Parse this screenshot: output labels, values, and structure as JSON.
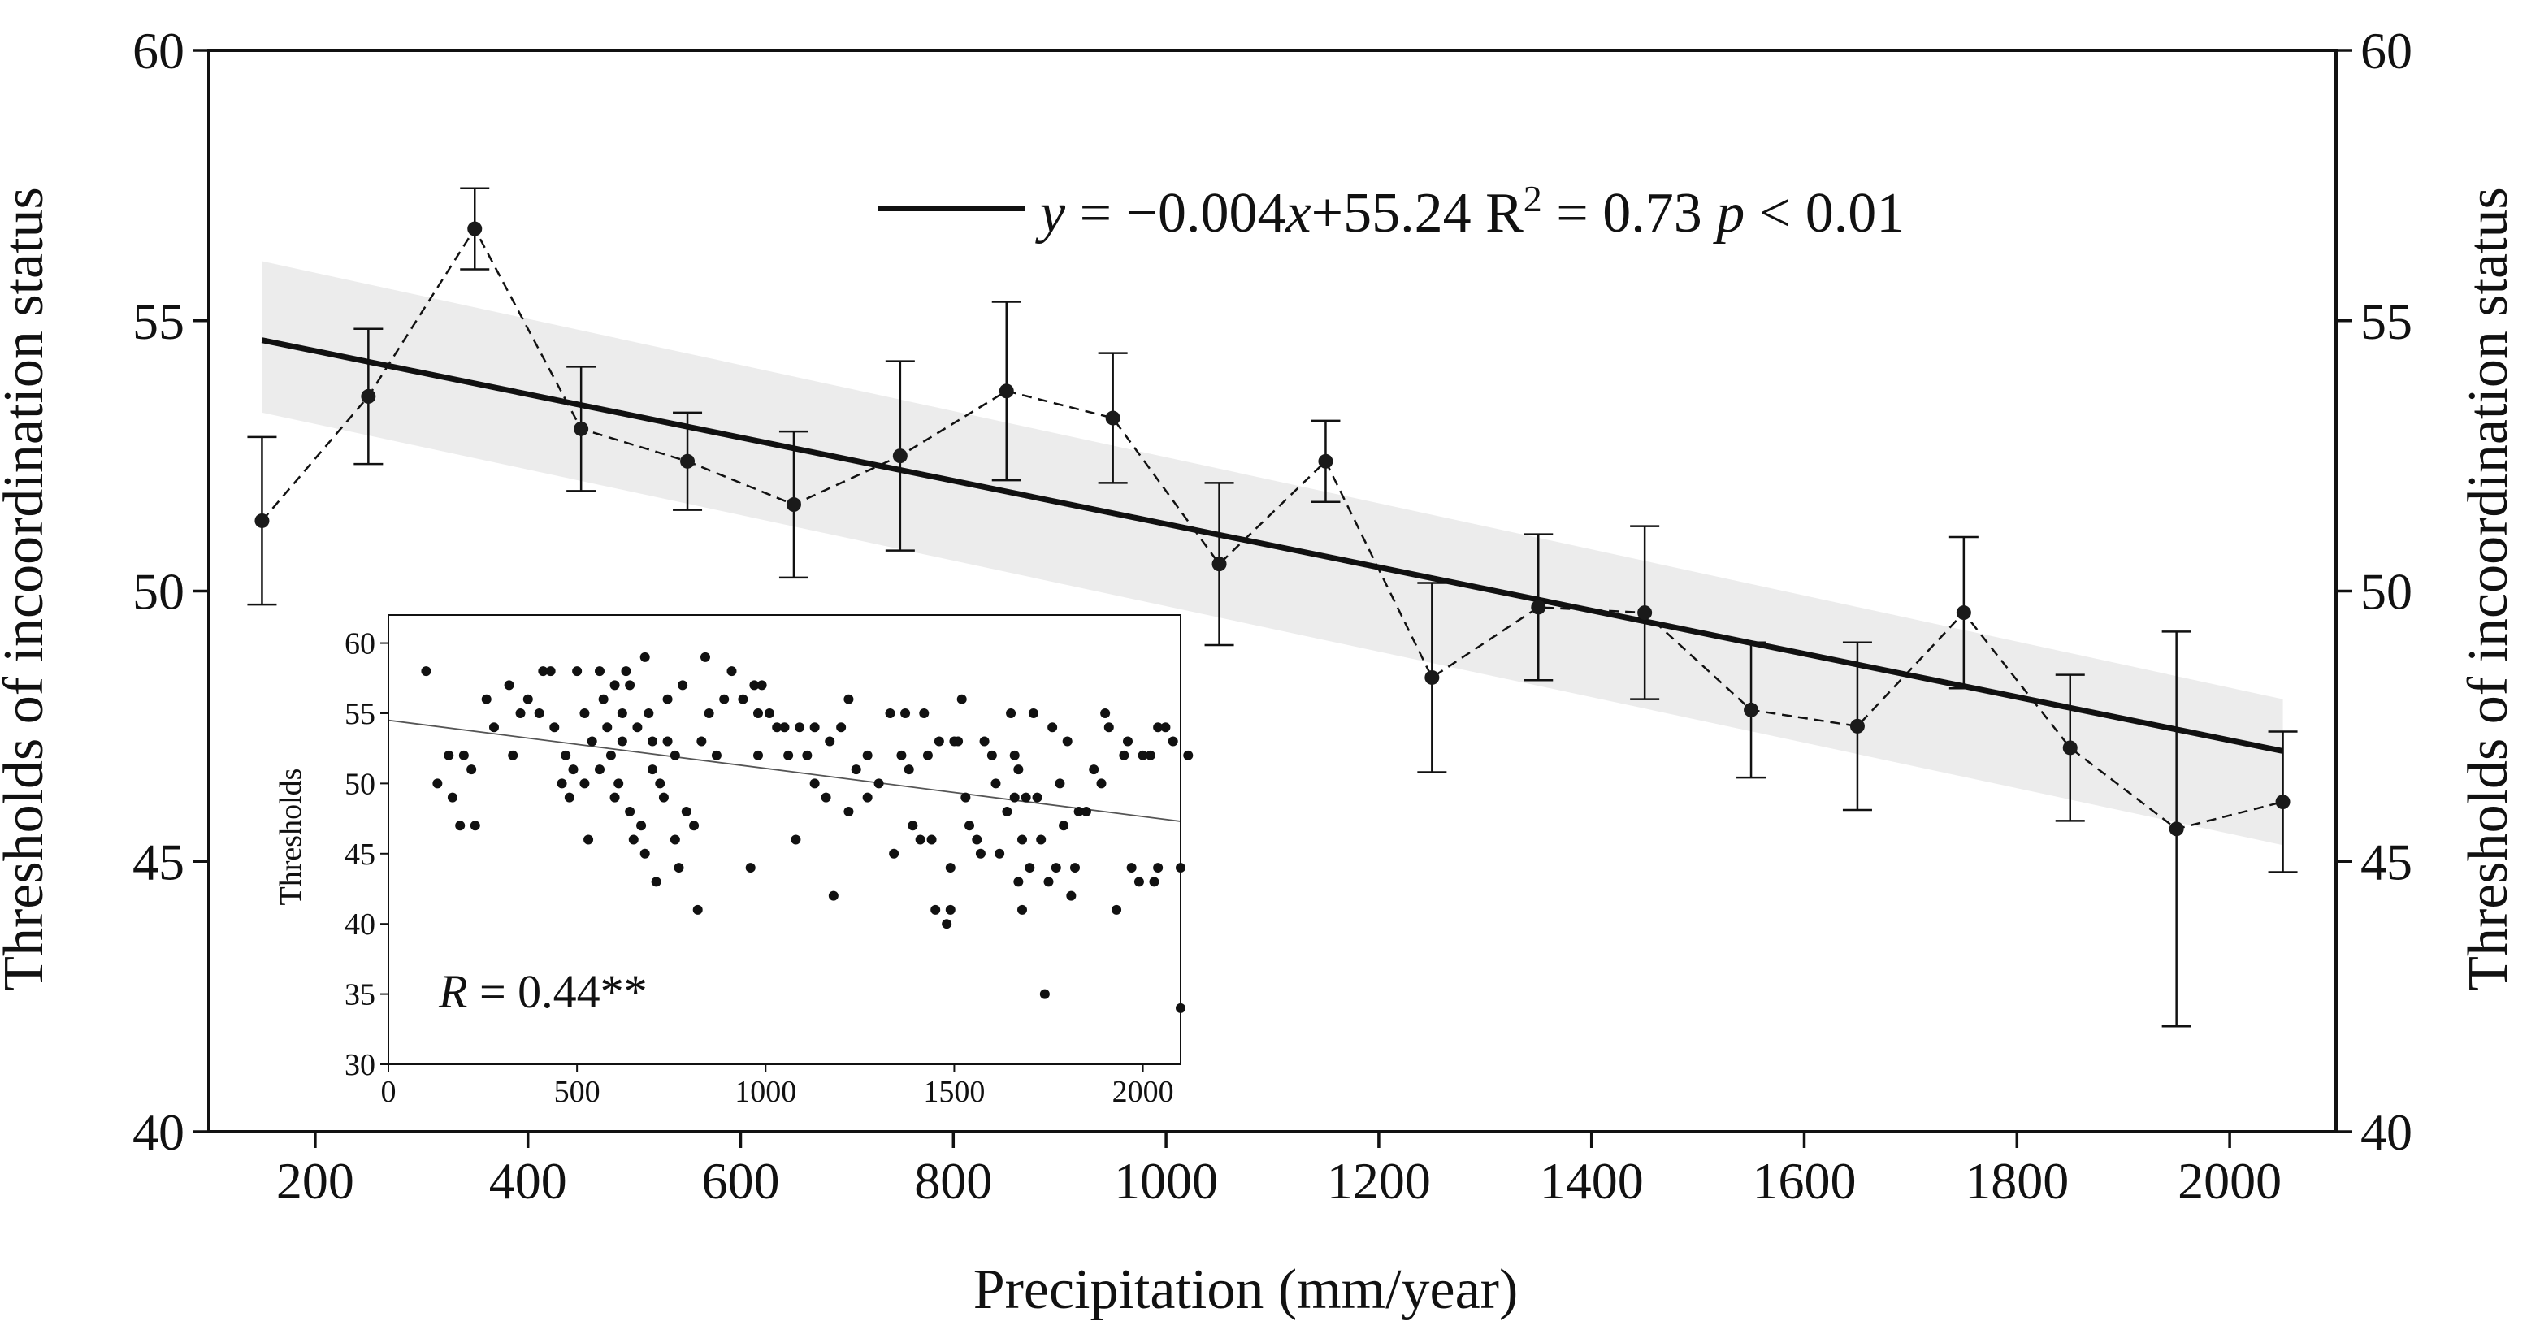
{
  "chart_data": [
    {
      "type": "line",
      "title": "",
      "xlabel": "Precipitation (mm/year)",
      "ylabel": "Thresholds of incoordination status",
      "ylabel_right": "Thresholds of incoordination status",
      "xlim": [
        100,
        2100
      ],
      "ylim": [
        40,
        60
      ],
      "xticks": [
        200,
        400,
        600,
        800,
        1000,
        1200,
        1400,
        1600,
        1800,
        2000
      ],
      "yticks": [
        40,
        45,
        50,
        55,
        60
      ],
      "series": [
        {
          "name": "mean threshold",
          "style": "dashed-with-points-and-error-bars",
          "x": [
            150,
            250,
            350,
            450,
            550,
            650,
            750,
            850,
            950,
            1050,
            1150,
            1250,
            1350,
            1450,
            1550,
            1650,
            1750,
            1850,
            1950,
            2050
          ],
          "y": [
            51.3,
            53.6,
            56.7,
            53.0,
            52.4,
            51.6,
            52.5,
            53.7,
            53.2,
            50.5,
            52.4,
            48.4,
            49.7,
            49.6,
            47.8,
            47.5,
            49.6,
            47.1,
            45.6,
            46.1
          ],
          "err": [
            1.55,
            1.25,
            0.75,
            1.15,
            0.9,
            1.35,
            1.75,
            1.65,
            1.2,
            1.5,
            0.75,
            1.75,
            1.35,
            1.6,
            1.25,
            1.55,
            1.4,
            1.35,
            3.65,
            1.3
          ]
        }
      ],
      "fit": {
        "label_prefix": "y",
        "label_equation": " = −0.004",
        "label_x": "x",
        "label_intercept": "+55.24 R",
        "label_sup": "2",
        "label_r2": " = 0.73 ",
        "label_p": "p",
        "label_pval": " < 0.01",
        "slope": -0.004,
        "intercept": 55.24,
        "x_range": [
          150,
          2050
        ],
        "band_at_start": [
          53.3,
          56.1
        ],
        "band_at_end": [
          45.3,
          48.0
        ]
      }
    },
    {
      "type": "scatter",
      "title": "",
      "xlabel": "",
      "ylabel": "Thresholds",
      "xlim": [
        0,
        2100
      ],
      "ylim": [
        30,
        62
      ],
      "xticks": [
        0,
        500,
        1000,
        1500,
        2000
      ],
      "yticks": [
        30,
        35,
        40,
        45,
        50,
        55,
        60
      ],
      "annotation_prefix": "R",
      "annotation_value": " = 0.44**",
      "trend": {
        "x0": 0,
        "y0": 54.5,
        "x1": 2100,
        "y1": 47.3
      },
      "points": [
        [
          100,
          58
        ],
        [
          130,
          50
        ],
        [
          160,
          52
        ],
        [
          170,
          49
        ],
        [
          190,
          47
        ],
        [
          200,
          52
        ],
        [
          220,
          51
        ],
        [
          230,
          47
        ],
        [
          260,
          56
        ],
        [
          280,
          54
        ],
        [
          320,
          57
        ],
        [
          330,
          52
        ],
        [
          350,
          55
        ],
        [
          370,
          56
        ],
        [
          400,
          55
        ],
        [
          410,
          58
        ],
        [
          430,
          58
        ],
        [
          440,
          54
        ],
        [
          460,
          50
        ],
        [
          470,
          52
        ],
        [
          480,
          49
        ],
        [
          490,
          51
        ],
        [
          500,
          58
        ],
        [
          520,
          55
        ],
        [
          520,
          50
        ],
        [
          530,
          46
        ],
        [
          540,
          53
        ],
        [
          560,
          58
        ],
        [
          560,
          51
        ],
        [
          570,
          56
        ],
        [
          580,
          54
        ],
        [
          590,
          52
        ],
        [
          600,
          57
        ],
        [
          600,
          49
        ],
        [
          610,
          50
        ],
        [
          620,
          53
        ],
        [
          620,
          55
        ],
        [
          630,
          58
        ],
        [
          640,
          48
        ],
        [
          640,
          57
        ],
        [
          650,
          46
        ],
        [
          660,
          54
        ],
        [
          670,
          47
        ],
        [
          680,
          59
        ],
        [
          680,
          45
        ],
        [
          690,
          55
        ],
        [
          700,
          51
        ],
        [
          700,
          53
        ],
        [
          710,
          43
        ],
        [
          720,
          50
        ],
        [
          730,
          49
        ],
        [
          740,
          53
        ],
        [
          740,
          56
        ],
        [
          760,
          52
        ],
        [
          760,
          46
        ],
        [
          770,
          44
        ],
        [
          780,
          57
        ],
        [
          790,
          48
        ],
        [
          810,
          47
        ],
        [
          820,
          41
        ],
        [
          830,
          53
        ],
        [
          840,
          59
        ],
        [
          850,
          55
        ],
        [
          870,
          52
        ],
        [
          890,
          56
        ],
        [
          910,
          58
        ],
        [
          940,
          56
        ],
        [
          960,
          44
        ],
        [
          970,
          57
        ],
        [
          980,
          52
        ],
        [
          980,
          55
        ],
        [
          990,
          57
        ],
        [
          1010,
          55
        ],
        [
          1030,
          54
        ],
        [
          1050,
          54
        ],
        [
          1060,
          52
        ],
        [
          1080,
          46
        ],
        [
          1090,
          54
        ],
        [
          1110,
          52
        ],
        [
          1130,
          54
        ],
        [
          1130,
          50
        ],
        [
          1160,
          49
        ],
        [
          1170,
          53
        ],
        [
          1180,
          42
        ],
        [
          1200,
          54
        ],
        [
          1220,
          56
        ],
        [
          1220,
          48
        ],
        [
          1240,
          51
        ],
        [
          1270,
          52
        ],
        [
          1270,
          49
        ],
        [
          1300,
          50
        ],
        [
          1330,
          55
        ],
        [
          1340,
          45
        ],
        [
          1360,
          52
        ],
        [
          1370,
          55
        ],
        [
          1380,
          51
        ],
        [
          1390,
          47
        ],
        [
          1410,
          46
        ],
        [
          1420,
          55
        ],
        [
          1430,
          52
        ],
        [
          1440,
          46
        ],
        [
          1450,
          41
        ],
        [
          1460,
          53
        ],
        [
          1480,
          40
        ],
        [
          1490,
          41
        ],
        [
          1490,
          44
        ],
        [
          1500,
          53
        ],
        [
          1510,
          53
        ],
        [
          1520,
          56
        ],
        [
          1530,
          49
        ],
        [
          1540,
          47
        ],
        [
          1560,
          46
        ],
        [
          1570,
          45
        ],
        [
          1580,
          53
        ],
        [
          1600,
          52
        ],
        [
          1610,
          50
        ],
        [
          1620,
          45
        ],
        [
          1640,
          48
        ],
        [
          1650,
          55
        ],
        [
          1660,
          49
        ],
        [
          1660,
          52
        ],
        [
          1670,
          51
        ],
        [
          1670,
          43
        ],
        [
          1680,
          46
        ],
        [
          1680,
          41
        ],
        [
          1690,
          49
        ],
        [
          1700,
          44
        ],
        [
          1710,
          55
        ],
        [
          1720,
          49
        ],
        [
          1730,
          46
        ],
        [
          1740,
          35
        ],
        [
          1750,
          43
        ],
        [
          1760,
          54
        ],
        [
          1770,
          44
        ],
        [
          1780,
          50
        ],
        [
          1790,
          47
        ],
        [
          1800,
          53
        ],
        [
          1810,
          42
        ],
        [
          1820,
          44
        ],
        [
          1830,
          48
        ],
        [
          1850,
          48
        ],
        [
          1870,
          51
        ],
        [
          1890,
          50
        ],
        [
          1900,
          55
        ],
        [
          1910,
          54
        ],
        [
          1930,
          41
        ],
        [
          1950,
          52
        ],
        [
          1960,
          53
        ],
        [
          1970,
          44
        ],
        [
          1990,
          43
        ],
        [
          2000,
          52
        ],
        [
          2020,
          52
        ],
        [
          2030,
          43
        ],
        [
          2040,
          44
        ],
        [
          2040,
          54
        ],
        [
          2060,
          54
        ],
        [
          2080,
          53
        ],
        [
          2100,
          44
        ],
        [
          2100,
          34
        ],
        [
          2120,
          52
        ]
      ]
    }
  ]
}
